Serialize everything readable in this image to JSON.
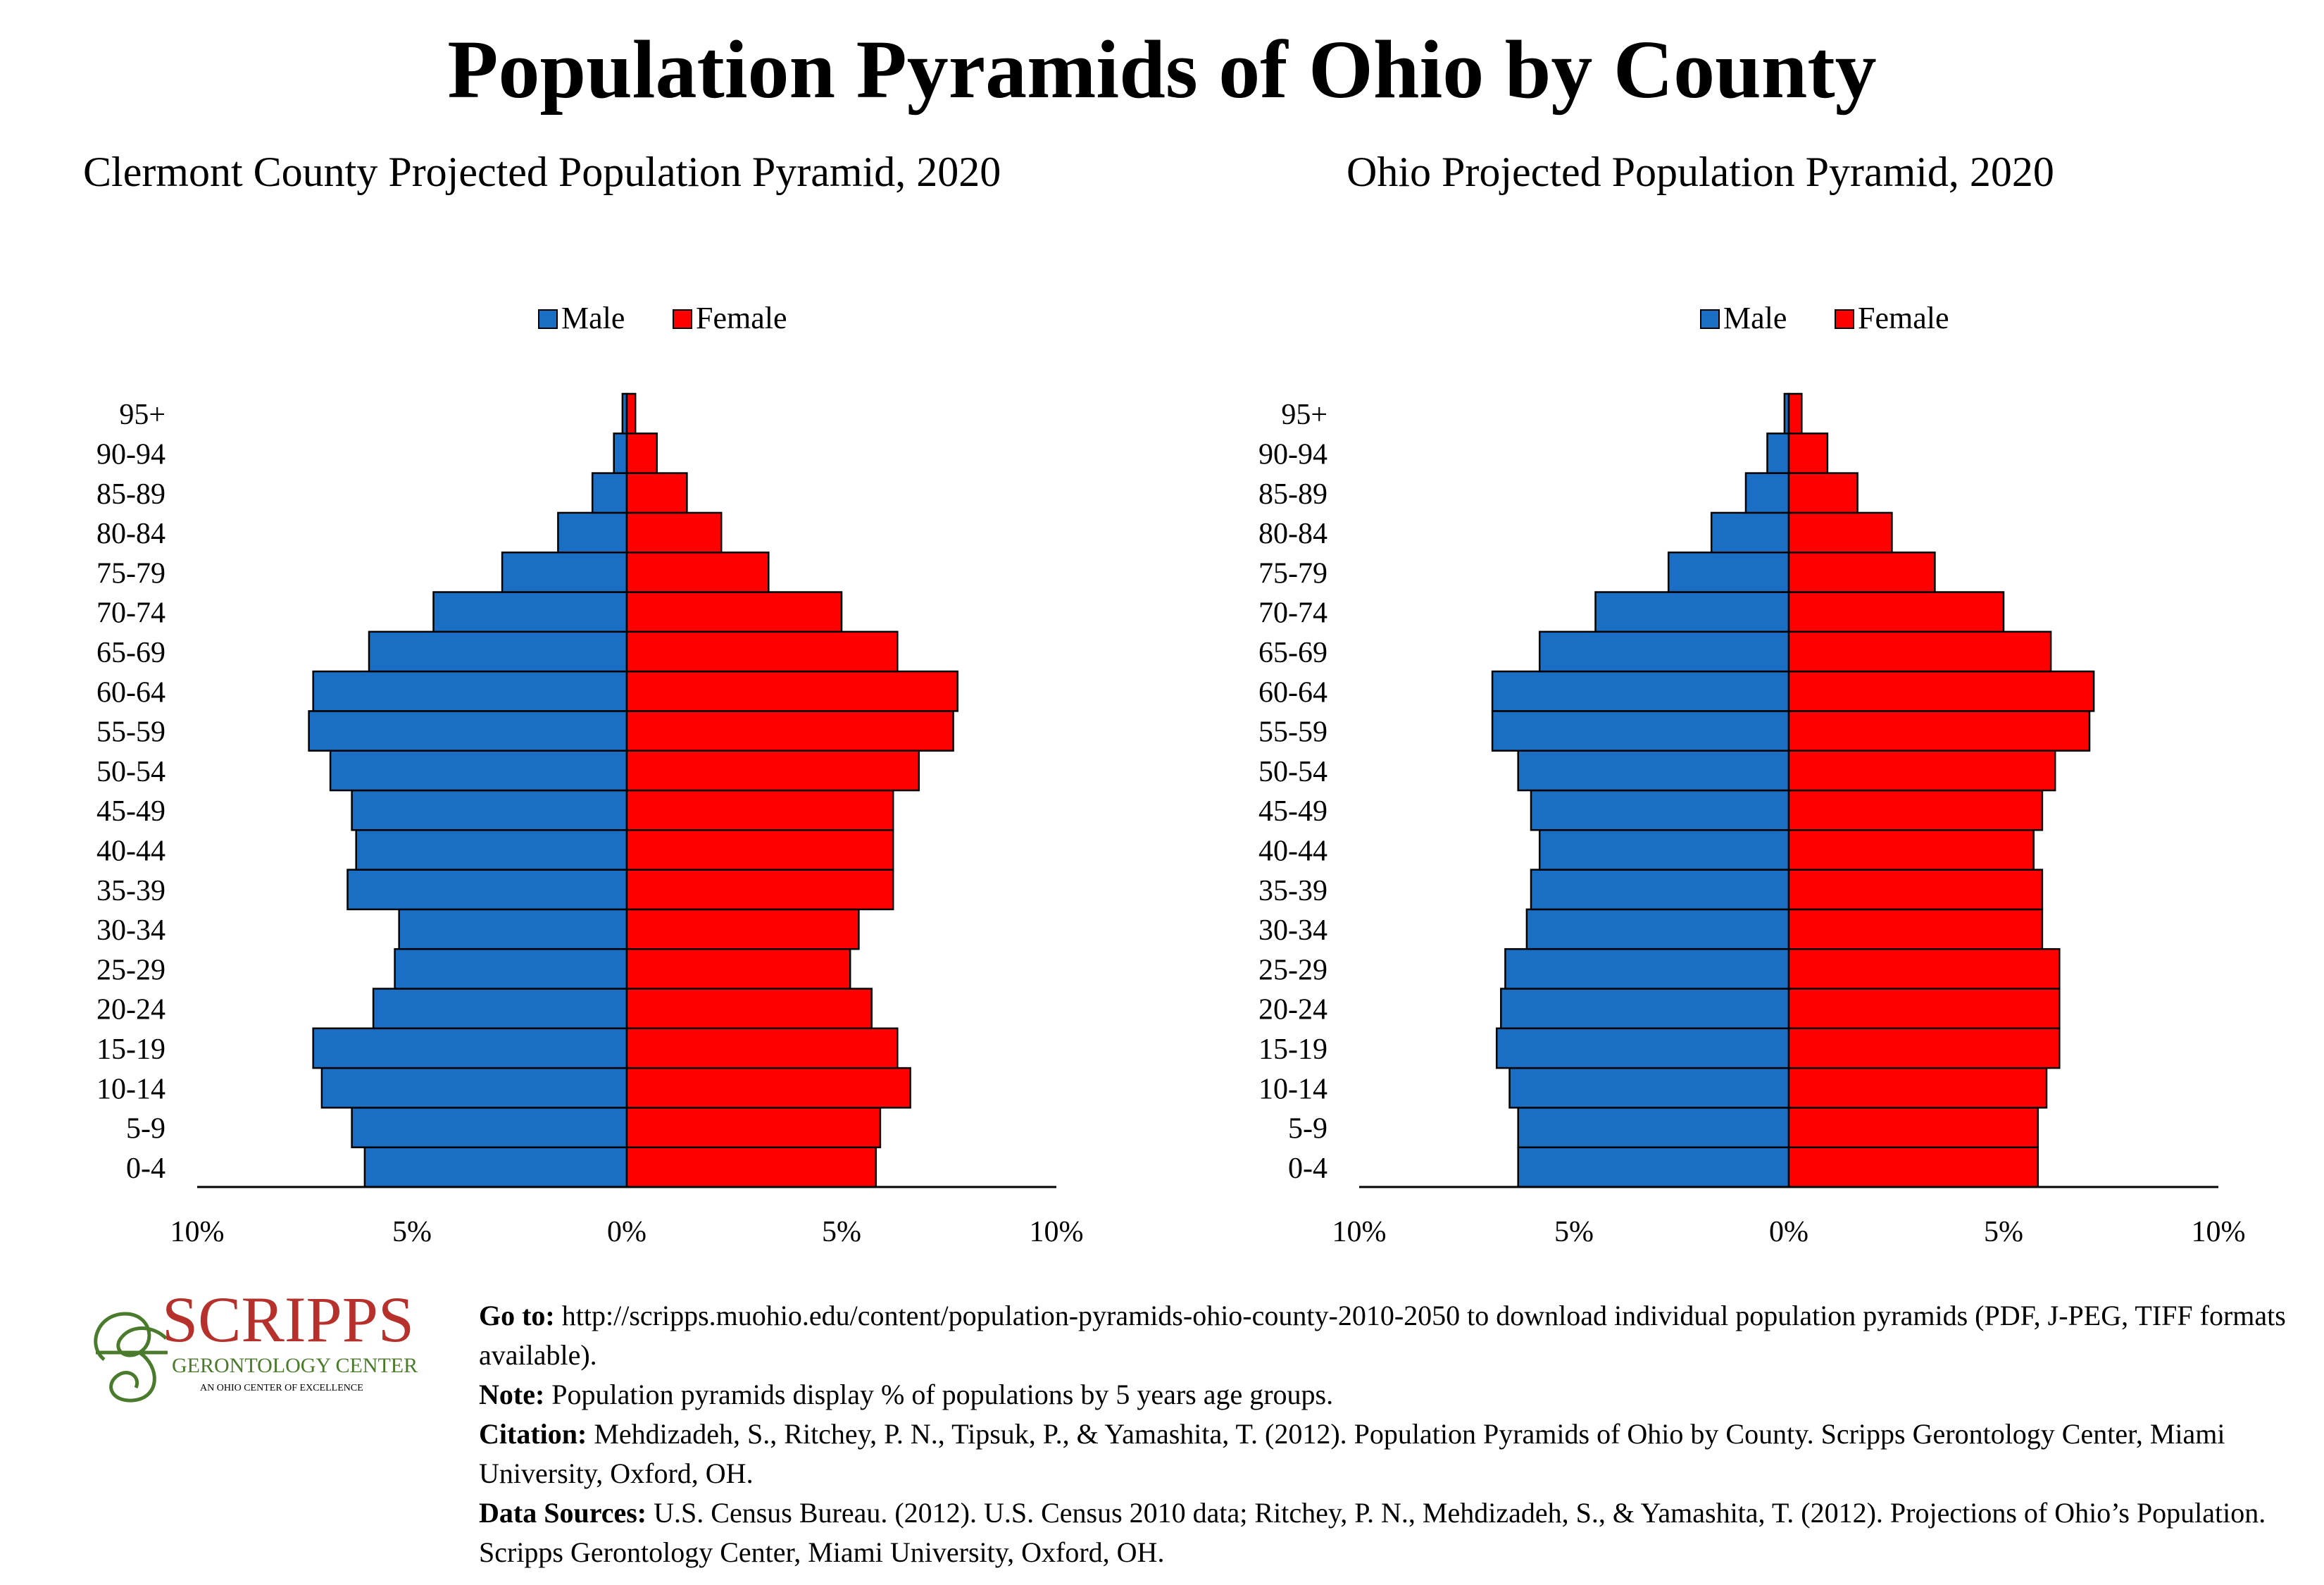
{
  "title": "Population Pyramids of Ohio by County",
  "colors": {
    "male": "#1a6fc4",
    "female": "#ff0000",
    "logo": "#b7312c",
    "logo_swirl": "#4a7a2c"
  },
  "chart_data": [
    {
      "type": "bar",
      "title": "Clermont County Projected Population Pyramid, 2020",
      "orientation": "horizontal-pyramid",
      "categories": [
        "0-4",
        "5-9",
        "10-14",
        "15-19",
        "20-24",
        "25-29",
        "30-34",
        "35-39",
        "40-44",
        "45-49",
        "50-54",
        "55-59",
        "60-64",
        "65-69",
        "70-74",
        "75-79",
        "80-84",
        "85-89",
        "90-94",
        "95+"
      ],
      "series": [
        {
          "name": "Male",
          "values": [
            6.1,
            6.4,
            7.1,
            7.3,
            5.9,
            5.4,
            5.3,
            6.5,
            6.3,
            6.4,
            6.9,
            7.4,
            7.3,
            6.0,
            4.5,
            2.9,
            1.6,
            0.8,
            0.3,
            0.1
          ]
        },
        {
          "name": "Female",
          "values": [
            5.8,
            5.9,
            6.6,
            6.3,
            5.7,
            5.2,
            5.4,
            6.2,
            6.2,
            6.2,
            6.8,
            7.6,
            7.7,
            6.3,
            5.0,
            3.3,
            2.2,
            1.4,
            0.7,
            0.2
          ]
        }
      ],
      "xlim": [
        -10,
        10
      ],
      "x_tick_labels": [
        "10%",
        "5%",
        "0%",
        "5%",
        "10%"
      ],
      "legend": [
        "Male",
        "Female"
      ],
      "legend_position": "top-center",
      "grid": false
    },
    {
      "type": "bar",
      "title": "Ohio Projected Population Pyramid, 2020",
      "orientation": "horizontal-pyramid",
      "categories": [
        "0-4",
        "5-9",
        "10-14",
        "15-19",
        "20-24",
        "25-29",
        "30-34",
        "35-39",
        "40-44",
        "45-49",
        "50-54",
        "55-59",
        "60-64",
        "65-69",
        "70-74",
        "75-79",
        "80-84",
        "85-89",
        "90-94",
        "95+"
      ],
      "series": [
        {
          "name": "Male",
          "values": [
            6.3,
            6.3,
            6.5,
            6.8,
            6.7,
            6.6,
            6.1,
            6.0,
            5.8,
            6.0,
            6.3,
            6.9,
            6.9,
            5.8,
            4.5,
            2.8,
            1.8,
            1.0,
            0.5,
            0.1
          ]
        },
        {
          "name": "Female",
          "values": [
            5.8,
            5.8,
            6.0,
            6.3,
            6.3,
            6.3,
            5.9,
            5.9,
            5.7,
            5.9,
            6.2,
            7.0,
            7.1,
            6.1,
            5.0,
            3.4,
            2.4,
            1.6,
            0.9,
            0.3
          ]
        }
      ],
      "xlim": [
        -10,
        10
      ],
      "x_tick_labels": [
        "10%",
        "5%",
        "0%",
        "5%",
        "10%"
      ],
      "legend": [
        "Male",
        "Female"
      ],
      "legend_position": "top-center",
      "grid": false
    }
  ],
  "logo": {
    "name": "SCRIPPS",
    "subtitle": "GERONTOLOGY CENTER",
    "tagline": "AN OHIO CENTER OF EXCELLENCE"
  },
  "footer": {
    "goto_label": "Go to:",
    "goto_text": "http://scripps.muohio.edu/content/population-pyramids-ohio-county-2010-2050 to download individual population pyramids (PDF, J-PEG, TIFF formats available).",
    "note_label": "Note:",
    "note_text": "Population pyramids display % of populations by 5 years age groups.",
    "citation_label": "Citation:",
    "citation_text": "Mehdizadeh, S., Ritchey, P. N., Tipsuk, P., & Yamashita, T. (2012). Population Pyramids of Ohio by County. Scripps Gerontology Center, Miami University, Oxford, OH.",
    "sources_label": "Data Sources:",
    "sources_text": "U.S. Census Bureau. (2012). U.S. Census 2010 data; Ritchey, P. N., Mehdizadeh, S., & Yamashita, T. (2012). Projections of Ohio’s Population. Scripps Gerontology Center, Miami University, Oxford, OH."
  }
}
